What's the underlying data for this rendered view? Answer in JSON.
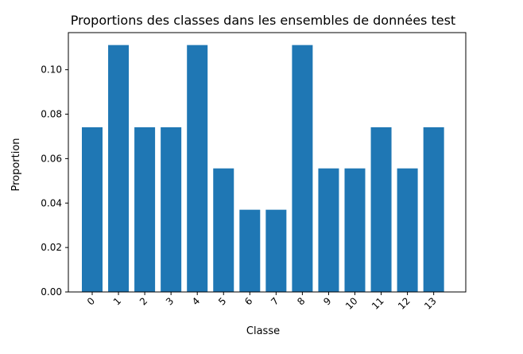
{
  "chart_data": {
    "type": "bar",
    "title": "Proportions des classes dans les ensembles de données test",
    "xlabel": "Classe",
    "ylabel": "Proportion",
    "categories": [
      "0",
      "1",
      "2",
      "3",
      "4",
      "5",
      "6",
      "7",
      "8",
      "9",
      "10",
      "11",
      "12",
      "13"
    ],
    "values": [
      0.0741,
      0.1111,
      0.0741,
      0.0741,
      0.1111,
      0.0556,
      0.037,
      0.037,
      0.1111,
      0.0556,
      0.0556,
      0.0741,
      0.0556,
      0.0741
    ],
    "ylim": [
      0,
      0.1167
    ],
    "yticks": [
      0.0,
      0.02,
      0.04,
      0.06,
      0.08,
      0.1
    ],
    "ytick_labels": [
      "0.00",
      "0.02",
      "0.04",
      "0.06",
      "0.08",
      "0.10"
    ],
    "grid": false,
    "legend": "none",
    "bar_color": "#1f77b4",
    "xtick_rotation": "45"
  }
}
